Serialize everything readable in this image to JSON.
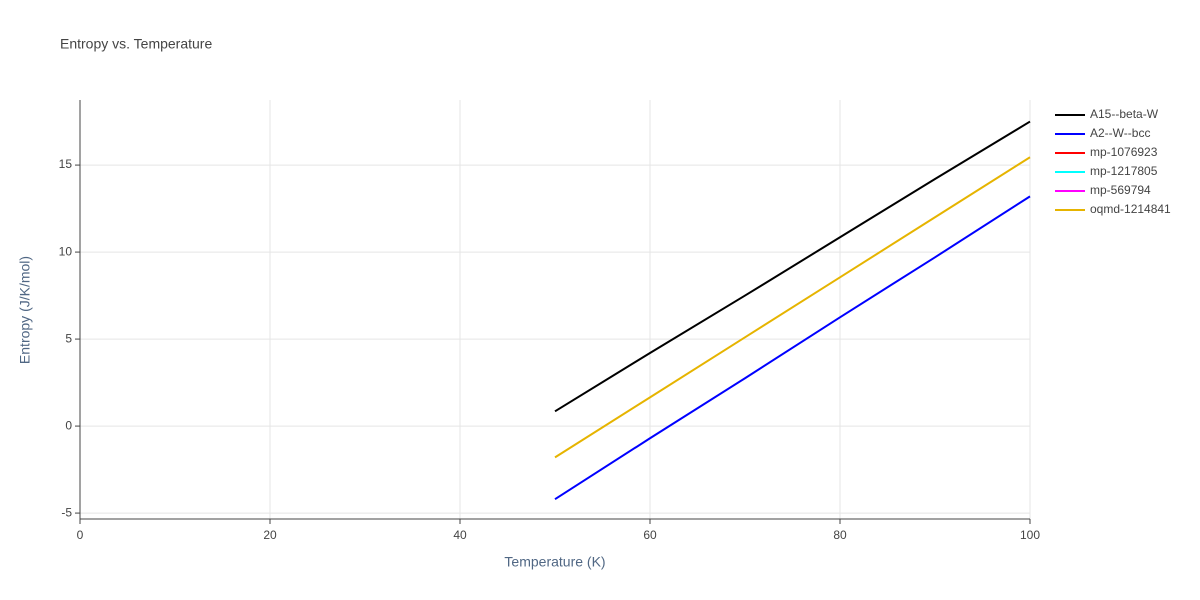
{
  "chart_data": {
    "type": "line",
    "title": "Entropy vs. Temperature",
    "x_label": "Temperature (K)",
    "y_label": "Entropy (J/K/mol)",
    "x": [
      50,
      60,
      70,
      80,
      90,
      100
    ],
    "series": [
      {
        "name": "A15--beta-W",
        "color": "#000000",
        "values": [
          0.85,
          4.2,
          7.5,
          10.85,
          14.2,
          17.5
        ]
      },
      {
        "name": "A2--W--bcc",
        "color": "#0000ff",
        "values": [
          -4.2,
          -0.7,
          2.75,
          6.25,
          9.7,
          13.2
        ]
      },
      {
        "name": "mp-1076923",
        "color": "#ff0000",
        "values": [
          null,
          null,
          null,
          null,
          null,
          null
        ]
      },
      {
        "name": "mp-1217805",
        "color": "#00ffff",
        "values": [
          null,
          null,
          null,
          null,
          null,
          null
        ]
      },
      {
        "name": "mp-569794",
        "color": "#ff00ff",
        "values": [
          null,
          null,
          null,
          null,
          null,
          null
        ]
      },
      {
        "name": "oqmd-1214841",
        "color": "#e6b400",
        "values": [
          -1.8,
          1.65,
          5.1,
          8.55,
          12.0,
          15.45
        ]
      }
    ],
    "xlim": [
      0,
      100
    ],
    "xticks": [
      0,
      20,
      40,
      60,
      80,
      100
    ],
    "ylim": [
      -5.34,
      18.74
    ],
    "yticks": [
      -5,
      0,
      5,
      10,
      15
    ],
    "grid": true,
    "legend": "right"
  }
}
